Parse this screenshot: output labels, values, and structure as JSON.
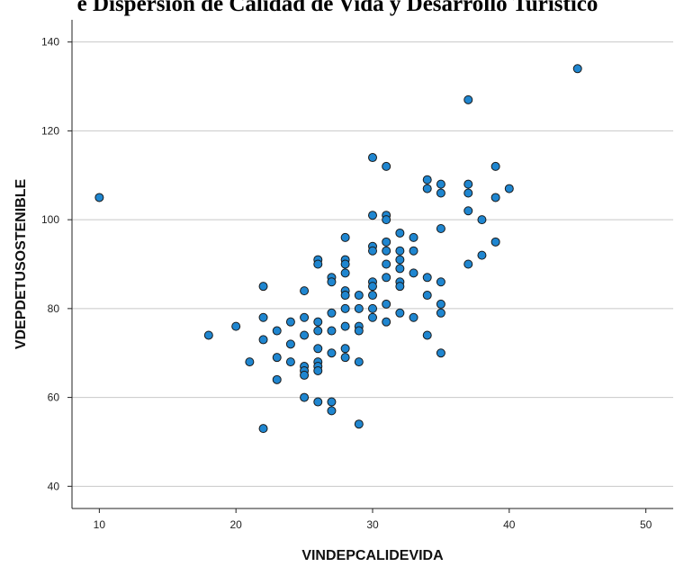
{
  "chart_data": {
    "type": "scatter",
    "title": "e Dispersión de Calidad de Vida y Desarrollo Turístico",
    "xlabel": "VINDEPCALIDEVIDA",
    "ylabel": "VDEPDETUSOSTENIBLE",
    "xlim": [
      8,
      52
    ],
    "ylim": [
      35,
      145
    ],
    "xticks": [
      10,
      20,
      30,
      40,
      50
    ],
    "yticks": [
      40,
      60,
      80,
      100,
      120,
      140
    ],
    "grid": "horizontal",
    "marker_color": "#1f86d0",
    "marker_edge_color": "#1a1a1a",
    "points": [
      {
        "x": 10,
        "y": 105
      },
      {
        "x": 18,
        "y": 74
      },
      {
        "x": 20,
        "y": 76
      },
      {
        "x": 21,
        "y": 68
      },
      {
        "x": 22,
        "y": 85
      },
      {
        "x": 22,
        "y": 78
      },
      {
        "x": 22,
        "y": 73
      },
      {
        "x": 22,
        "y": 53
      },
      {
        "x": 23,
        "y": 75
      },
      {
        "x": 23,
        "y": 69
      },
      {
        "x": 23,
        "y": 64
      },
      {
        "x": 24,
        "y": 77
      },
      {
        "x": 24,
        "y": 72
      },
      {
        "x": 24,
        "y": 68
      },
      {
        "x": 25,
        "y": 84
      },
      {
        "x": 25,
        "y": 78
      },
      {
        "x": 25,
        "y": 74
      },
      {
        "x": 25,
        "y": 67
      },
      {
        "x": 25,
        "y": 66
      },
      {
        "x": 25,
        "y": 65
      },
      {
        "x": 25,
        "y": 60
      },
      {
        "x": 26,
        "y": 91
      },
      {
        "x": 26,
        "y": 90
      },
      {
        "x": 26,
        "y": 77
      },
      {
        "x": 26,
        "y": 75
      },
      {
        "x": 26,
        "y": 71
      },
      {
        "x": 26,
        "y": 68
      },
      {
        "x": 26,
        "y": 67
      },
      {
        "x": 26,
        "y": 66
      },
      {
        "x": 26,
        "y": 59
      },
      {
        "x": 27,
        "y": 87
      },
      {
        "x": 27,
        "y": 86
      },
      {
        "x": 27,
        "y": 79
      },
      {
        "x": 27,
        "y": 75
      },
      {
        "x": 27,
        "y": 70
      },
      {
        "x": 27,
        "y": 59
      },
      {
        "x": 27,
        "y": 57
      },
      {
        "x": 28,
        "y": 96
      },
      {
        "x": 28,
        "y": 91
      },
      {
        "x": 28,
        "y": 90
      },
      {
        "x": 28,
        "y": 88
      },
      {
        "x": 28,
        "y": 84
      },
      {
        "x": 28,
        "y": 83
      },
      {
        "x": 28,
        "y": 80
      },
      {
        "x": 28,
        "y": 76
      },
      {
        "x": 28,
        "y": 71
      },
      {
        "x": 28,
        "y": 69
      },
      {
        "x": 29,
        "y": 83
      },
      {
        "x": 29,
        "y": 80
      },
      {
        "x": 29,
        "y": 76
      },
      {
        "x": 29,
        "y": 75
      },
      {
        "x": 29,
        "y": 68
      },
      {
        "x": 29,
        "y": 54
      },
      {
        "x": 30,
        "y": 114
      },
      {
        "x": 30,
        "y": 101
      },
      {
        "x": 30,
        "y": 94
      },
      {
        "x": 30,
        "y": 93
      },
      {
        "x": 30,
        "y": 86
      },
      {
        "x": 30,
        "y": 85
      },
      {
        "x": 30,
        "y": 83
      },
      {
        "x": 30,
        "y": 80
      },
      {
        "x": 30,
        "y": 78
      },
      {
        "x": 31,
        "y": 112
      },
      {
        "x": 31,
        "y": 101
      },
      {
        "x": 31,
        "y": 100
      },
      {
        "x": 31,
        "y": 95
      },
      {
        "x": 31,
        "y": 93
      },
      {
        "x": 31,
        "y": 90
      },
      {
        "x": 31,
        "y": 87
      },
      {
        "x": 31,
        "y": 81
      },
      {
        "x": 31,
        "y": 77
      },
      {
        "x": 32,
        "y": 97
      },
      {
        "x": 32,
        "y": 93
      },
      {
        "x": 32,
        "y": 91
      },
      {
        "x": 32,
        "y": 89
      },
      {
        "x": 32,
        "y": 86
      },
      {
        "x": 32,
        "y": 85
      },
      {
        "x": 32,
        "y": 79
      },
      {
        "x": 33,
        "y": 96
      },
      {
        "x": 33,
        "y": 93
      },
      {
        "x": 33,
        "y": 88
      },
      {
        "x": 33,
        "y": 78
      },
      {
        "x": 34,
        "y": 109
      },
      {
        "x": 34,
        "y": 107
      },
      {
        "x": 34,
        "y": 87
      },
      {
        "x": 34,
        "y": 83
      },
      {
        "x": 34,
        "y": 74
      },
      {
        "x": 35,
        "y": 108
      },
      {
        "x": 35,
        "y": 106
      },
      {
        "x": 35,
        "y": 98
      },
      {
        "x": 35,
        "y": 86
      },
      {
        "x": 35,
        "y": 81
      },
      {
        "x": 35,
        "y": 79
      },
      {
        "x": 35,
        "y": 70
      },
      {
        "x": 37,
        "y": 127
      },
      {
        "x": 37,
        "y": 108
      },
      {
        "x": 37,
        "y": 106
      },
      {
        "x": 37,
        "y": 102
      },
      {
        "x": 37,
        "y": 90
      },
      {
        "x": 38,
        "y": 100
      },
      {
        "x": 38,
        "y": 92
      },
      {
        "x": 39,
        "y": 112
      },
      {
        "x": 39,
        "y": 105
      },
      {
        "x": 39,
        "y": 95
      },
      {
        "x": 40,
        "y": 107
      },
      {
        "x": 45,
        "y": 134
      }
    ]
  }
}
